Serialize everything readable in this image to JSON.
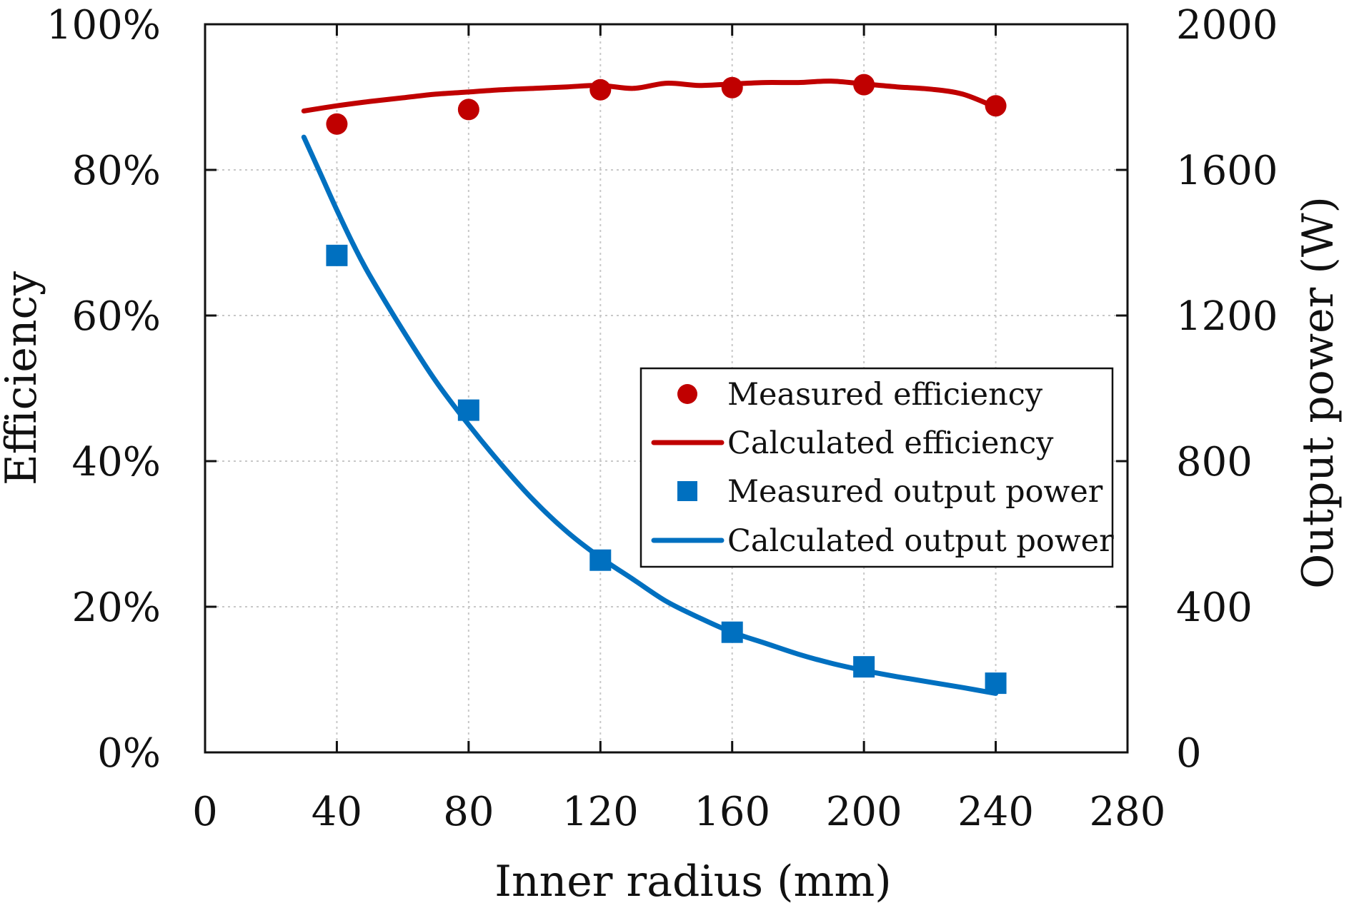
{
  "chart_data": {
    "type": "line",
    "xlabel": "Inner radius (mm)",
    "ylabel_left": "Efficiency",
    "ylabel_right": "Output power (W)",
    "xlim": [
      0,
      280
    ],
    "ylim_left": [
      0,
      1
    ],
    "ylim_right": [
      0,
      2000
    ],
    "x_ticks": [
      0,
      40,
      80,
      120,
      160,
      200,
      240,
      280
    ],
    "x_tick_labels": [
      "0",
      "40",
      "80",
      "120",
      "160",
      "200",
      "240",
      "280"
    ],
    "y_left_ticks": [
      0,
      0.2,
      0.4,
      0.6,
      0.8,
      1.0
    ],
    "y_left_tick_labels": [
      "0%",
      "20%",
      "40%",
      "60%",
      "80%",
      "100%"
    ],
    "y_right_ticks": [
      0,
      400,
      800,
      1200,
      1600,
      2000
    ],
    "y_right_tick_labels": [
      "0",
      "400",
      "800",
      "1200",
      "1600",
      "2000"
    ],
    "grid": true,
    "legend_position": "center-right",
    "series": [
      {
        "name": "Measured efficiency",
        "kind": "scatter",
        "marker": "circle",
        "axis": "left",
        "color": "#c00000",
        "x": [
          40,
          80,
          120,
          160,
          200,
          240
        ],
        "values": [
          0.863,
          0.883,
          0.91,
          0.913,
          0.917,
          0.888
        ]
      },
      {
        "name": "Calculated efficiency",
        "kind": "line",
        "axis": "left",
        "color": "#c00000",
        "x": [
          30,
          40,
          50,
          60,
          70,
          80,
          90,
          100,
          110,
          120,
          130,
          140,
          150,
          160,
          170,
          180,
          190,
          200,
          210,
          220,
          230,
          240
        ],
        "values": [
          0.881,
          0.888,
          0.894,
          0.899,
          0.904,
          0.907,
          0.91,
          0.912,
          0.914,
          0.916,
          0.912,
          0.919,
          0.916,
          0.918,
          0.92,
          0.92,
          0.922,
          0.918,
          0.914,
          0.911,
          0.904,
          0.886
        ]
      },
      {
        "name": "Measured output power",
        "kind": "scatter",
        "marker": "square",
        "axis": "right",
        "color": "#0070c0",
        "x": [
          40,
          80,
          120,
          160,
          200,
          240
        ],
        "values": [
          1365,
          940,
          528,
          330,
          235,
          190
        ]
      },
      {
        "name": "Calculated output power",
        "kind": "line",
        "axis": "right",
        "color": "#0070c0",
        "x": [
          30,
          35,
          40,
          45,
          50,
          60,
          70,
          80,
          90,
          100,
          110,
          120,
          130,
          140,
          150,
          160,
          170,
          180,
          190,
          200,
          210,
          220,
          230,
          240
        ],
        "values": [
          1690,
          1590,
          1490,
          1395,
          1310,
          1160,
          1020,
          900,
          790,
          690,
          605,
          535,
          475,
          415,
          370,
          330,
          300,
          270,
          245,
          225,
          208,
          193,
          178,
          162
        ]
      }
    ]
  }
}
